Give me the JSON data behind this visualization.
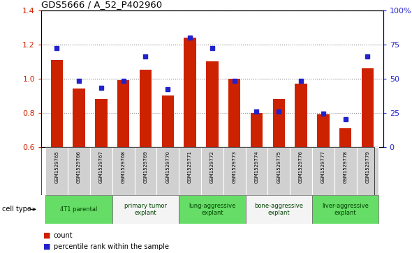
{
  "title": "GDS5666 / A_52_P402960",
  "samples": [
    "GSM1529765",
    "GSM1529766",
    "GSM1529767",
    "GSM1529768",
    "GSM1529769",
    "GSM1529770",
    "GSM1529771",
    "GSM1529772",
    "GSM1529773",
    "GSM1529774",
    "GSM1529775",
    "GSM1529776",
    "GSM1529777",
    "GSM1529778",
    "GSM1529779"
  ],
  "count": [
    1.11,
    0.94,
    0.88,
    0.99,
    1.05,
    0.9,
    1.24,
    1.1,
    1.0,
    0.8,
    0.88,
    0.97,
    0.79,
    0.71,
    1.06
  ],
  "percentile": [
    72,
    48,
    43,
    48,
    66,
    42,
    80,
    72,
    48,
    26,
    26,
    48,
    24,
    20,
    66
  ],
  "ylim": [
    0.6,
    1.4
  ],
  "yticks": [
    0.6,
    0.8,
    1.0,
    1.2,
    1.4
  ],
  "right_yticks": [
    0,
    25,
    50,
    75,
    100
  ],
  "bar_color": "#cc2200",
  "dot_color": "#2222cc",
  "groups": [
    {
      "label": "4T1 parental",
      "start": 0,
      "end": 3,
      "green": true
    },
    {
      "label": "primary tumor\nexplant",
      "start": 3,
      "end": 6,
      "green": false
    },
    {
      "label": "lung-aggressive\nexplant",
      "start": 6,
      "end": 9,
      "green": true
    },
    {
      "label": "bone-aggressive\nexplant",
      "start": 9,
      "end": 12,
      "green": false
    },
    {
      "label": "liver-aggressive\nexplant",
      "start": 12,
      "end": 15,
      "green": true
    }
  ],
  "cell_color_green": "#66dd66",
  "cell_color_white": "#f4f4f4",
  "sample_cell_color": "#d0d0d0",
  "text_green": "#004400"
}
